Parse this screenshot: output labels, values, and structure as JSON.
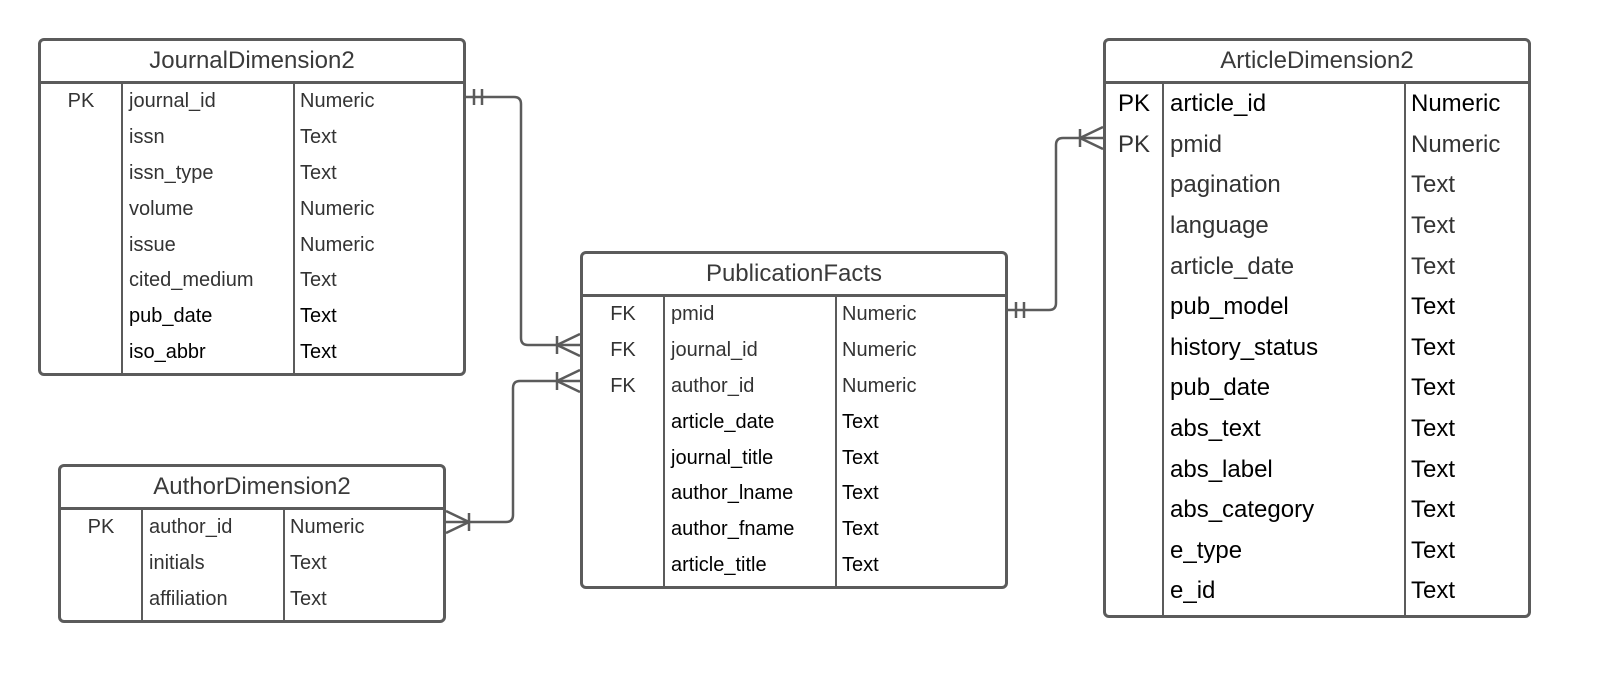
{
  "diagram": {
    "entities": [
      {
        "id": "journal",
        "title": "JournalDimension2",
        "fields": [
          {
            "key": "PK",
            "name": "journal_id",
            "type": "Numeric"
          },
          {
            "key": "",
            "name": "issn",
            "type": "Text"
          },
          {
            "key": "",
            "name": "issn_type",
            "type": "Text"
          },
          {
            "key": "",
            "name": "volume",
            "type": "Numeric"
          },
          {
            "key": "",
            "name": "issue",
            "type": "Numeric"
          },
          {
            "key": "",
            "name": "cited_medium",
            "type": "Text"
          },
          {
            "key": "",
            "name": "pub_date",
            "type": "Text"
          },
          {
            "key": "",
            "name": "iso_abbr",
            "type": "Text"
          }
        ]
      },
      {
        "id": "author",
        "title": "AuthorDimension2",
        "fields": [
          {
            "key": "PK",
            "name": "author_id",
            "type": "Numeric"
          },
          {
            "key": "",
            "name": "initials",
            "type": "Text"
          },
          {
            "key": "",
            "name": "affiliation",
            "type": "Text"
          }
        ]
      },
      {
        "id": "facts",
        "title": "PublicationFacts",
        "fields": [
          {
            "key": "FK",
            "name": "pmid",
            "type": "Numeric"
          },
          {
            "key": "FK",
            "name": "journal_id",
            "type": "Numeric"
          },
          {
            "key": "FK",
            "name": "author_id",
            "type": "Numeric"
          },
          {
            "key": "",
            "name": "article_date",
            "type": "Text"
          },
          {
            "key": "",
            "name": "journal_title",
            "type": "Text"
          },
          {
            "key": "",
            "name": "author_lname",
            "type": "Text"
          },
          {
            "key": "",
            "name": "author_fname",
            "type": "Text"
          },
          {
            "key": "",
            "name": "article_title",
            "type": "Text"
          }
        ]
      },
      {
        "id": "article",
        "title": "ArticleDimension2",
        "fields": [
          {
            "key": "PK",
            "name": "article_id",
            "type": "Numeric"
          },
          {
            "key": "PK",
            "name": "pmid",
            "type": "Numeric"
          },
          {
            "key": "",
            "name": "pagination",
            "type": "Text"
          },
          {
            "key": "",
            "name": "language",
            "type": "Text"
          },
          {
            "key": "",
            "name": "article_date",
            "type": "Text"
          },
          {
            "key": "",
            "name": "pub_model",
            "type": "Text"
          },
          {
            "key": "",
            "name": "history_status",
            "type": "Text"
          },
          {
            "key": "",
            "name": "pub_date",
            "type": "Text"
          },
          {
            "key": "",
            "name": "abs_text",
            "type": "Text"
          },
          {
            "key": "",
            "name": "abs_label",
            "type": "Text"
          },
          {
            "key": "",
            "name": "abs_category",
            "type": "Text"
          },
          {
            "key": "",
            "name": "e_type",
            "type": "Text"
          },
          {
            "key": "",
            "name": "e_id",
            "type": "Text"
          }
        ]
      }
    ],
    "relationships": [
      {
        "from": "journal",
        "from_field": "journal_id",
        "from_card": "one",
        "to": "facts",
        "to_field": "journal_id",
        "to_card": "many"
      },
      {
        "from": "author",
        "from_field": "author_id",
        "from_card": "many",
        "to": "facts",
        "to_field": "author_id",
        "to_card": "many"
      },
      {
        "from": "facts",
        "from_field": "pmid",
        "from_card": "one",
        "to": "article",
        "to_field": "pmid",
        "to_card": "many"
      }
    ]
  }
}
